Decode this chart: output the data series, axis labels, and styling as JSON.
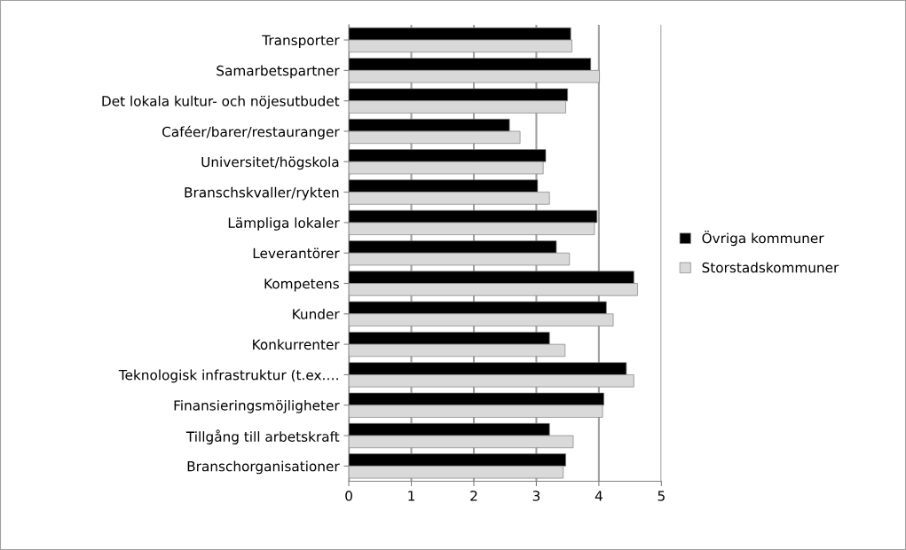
{
  "chart_data": {
    "type": "bar",
    "orientation": "horizontal",
    "categories": [
      "Transporter",
      "Samarbetspartner",
      "Det lokala kultur- och nöjesutbudet",
      "Caféer/barer/restauranger",
      "Universitet/högskola",
      "Branschskvaller/rykten",
      "Lämpliga lokaler",
      "Leverantörer",
      "Kompetens",
      "Kunder",
      "Konkurrenter",
      "Teknologisk infrastruktur (t.ex.…",
      "Finansieringsmöjligheter",
      "Tillgång till arbetskraft",
      "Branschorganisationer"
    ],
    "series": [
      {
        "name": "Övriga kommuner",
        "color": "#000000",
        "values": [
          3.55,
          3.87,
          3.5,
          2.57,
          3.15,
          3.02,
          3.97,
          3.32,
          4.56,
          4.12,
          3.21,
          4.44,
          4.08,
          3.21,
          3.47
        ]
      },
      {
        "name": "Storstadskommuner",
        "color": "#d9d9d9",
        "values": [
          3.57,
          4.01,
          3.47,
          2.74,
          3.11,
          3.21,
          3.93,
          3.53,
          4.62,
          4.23,
          3.46,
          4.56,
          4.06,
          3.59,
          3.43
        ]
      }
    ],
    "xlim": [
      0,
      5
    ],
    "xticks": [
      0,
      1,
      2,
      3,
      4,
      5
    ],
    "grid": "x",
    "legend": "right"
  }
}
